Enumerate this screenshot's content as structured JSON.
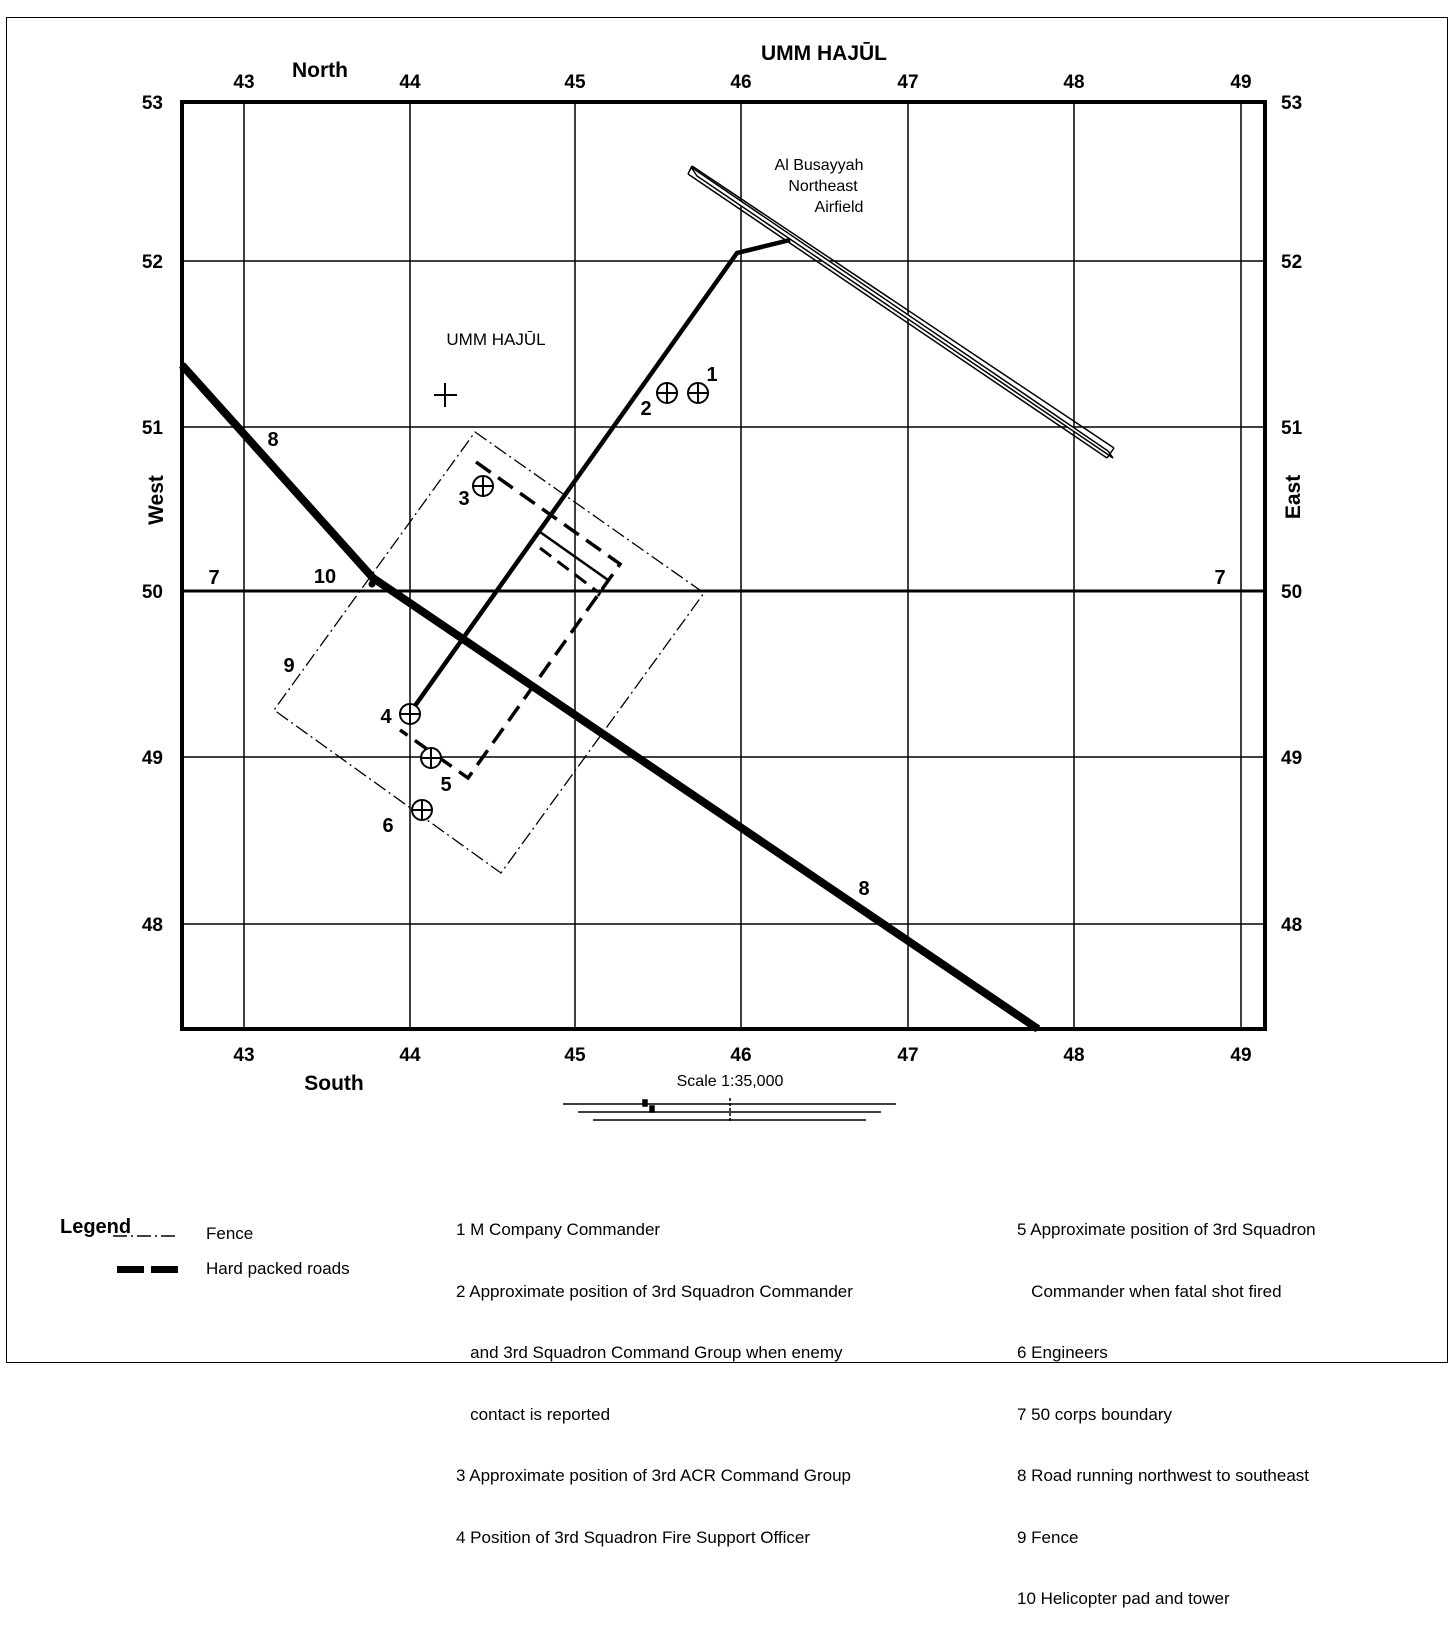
{
  "map": {
    "top_title": "UMM HAJŪL",
    "north_label": "North",
    "south_label": "South",
    "west_label": "West",
    "east_label": "East",
    "x_ticks": [
      "43",
      "44",
      "45",
      "46",
      "47",
      "48",
      "49"
    ],
    "y_ticks": [
      "53",
      "52",
      "51",
      "50",
      "49",
      "48"
    ],
    "place_name": "UMM HAJŪL",
    "airfield_lines": [
      "Al Busayyah",
      "Northeast",
      "Airfield"
    ],
    "scale_text": "Scale 1:35,000",
    "markers": {
      "m1": "1",
      "m2": "2",
      "m3": "3",
      "m4": "4",
      "m5": "5",
      "m6": "6",
      "m7_left": "7",
      "m7_right": "7",
      "m8_upper": "8",
      "m8_lower": "8",
      "m9": "9",
      "m10": "10"
    }
  },
  "legend": {
    "title": "Legend",
    "items": [
      {
        "symbol": "fence-line",
        "label": "Fence"
      },
      {
        "symbol": "road-line",
        "label": "Hard packed roads"
      }
    ]
  },
  "notes": {
    "col1": [
      "1 M Company Commander",
      "2 Approximate position of 3rd Squadron Commander",
      "   and 3rd Squadron Command Group when enemy",
      "   contact is reported",
      "3 Approximate position of 3rd ACR Command Group",
      "4 Position of 3rd Squadron Fire Support Officer"
    ],
    "col2": [
      "5 Approximate position of 3rd Squadron",
      "   Commander when fatal shot fired",
      "6 Engineers",
      "7 50 corps boundary",
      "8 Road running northwest to southeast",
      "9 Fence",
      "10 Helicopter pad and tower"
    ]
  }
}
